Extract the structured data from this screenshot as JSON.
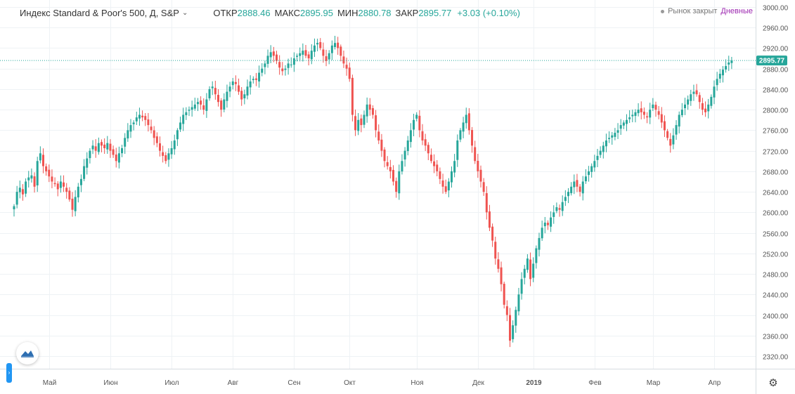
{
  "header": {
    "symbol": "Индекс Standard & Poor's 500, Д, S&P",
    "chevron": "⌄",
    "open_label": "ОТКР",
    "open": "2888.46",
    "high_label": "МАКС",
    "high": "2895.95",
    "low_label": "МИН",
    "low": "2880.78",
    "close_label": "ЗАКР",
    "close": "2895.77",
    "change": "+3.03 (+0.10%)"
  },
  "status": {
    "market": "Рынок закрыт",
    "interval": "Дневные"
  },
  "colors": {
    "up": "#26a69a",
    "down": "#ef5350",
    "grid": "#eef2f5",
    "price_line": "#26a69a",
    "axis_text": "#555555"
  },
  "chart_data": {
    "type": "candlestick",
    "ylim": [
      2300,
      3000
    ],
    "yticks": [
      2320,
      2360,
      2400,
      2440,
      2480,
      2520,
      2560,
      2600,
      2640,
      2680,
      2720,
      2760,
      2800,
      2840,
      2880,
      2920,
      2960,
      3000
    ],
    "ytick_labels": [
      "2320.00",
      "2360.00",
      "2400.00",
      "2440.00",
      "2480.00",
      "2520.00",
      "2560.00",
      "2600.00",
      "2640.00",
      "2680.00",
      "2720.00",
      "2760.00",
      "2800.00",
      "2840.00",
      "2880.00",
      "2920.00",
      "2960.00",
      "3000.00"
    ],
    "x_ticks": [
      {
        "label": "Май",
        "bar": 12
      },
      {
        "label": "Июн",
        "bar": 33
      },
      {
        "label": "Июл",
        "bar": 54
      },
      {
        "label": "Авг",
        "bar": 75
      },
      {
        "label": "Сен",
        "bar": 96
      },
      {
        "label": "Окт",
        "bar": 115
      },
      {
        "label": "Ноя",
        "bar": 138
      },
      {
        "label": "Дек",
        "bar": 159
      },
      {
        "label": "2019",
        "bar": 178,
        "bold": true
      },
      {
        "label": "Фев",
        "bar": 199
      },
      {
        "label": "Мар",
        "bar": 219
      },
      {
        "label": "Апр",
        "bar": 240
      }
    ],
    "last_price": 2895.77,
    "last_price_label": "2895.77",
    "closes": [
      2612,
      2640,
      2648,
      2635,
      2660,
      2668,
      2672,
      2650,
      2700,
      2715,
      2690,
      2680,
      2670,
      2660,
      2655,
      2645,
      2660,
      2650,
      2640,
      2625,
      2605,
      2630,
      2650,
      2665,
      2690,
      2705,
      2720,
      2730,
      2720,
      2735,
      2730,
      2725,
      2735,
      2720,
      2712,
      2700,
      2715,
      2725,
      2745,
      2760,
      2770,
      2775,
      2785,
      2790,
      2785,
      2780,
      2770,
      2760,
      2745,
      2735,
      2720,
      2710,
      2700,
      2715,
      2725,
      2740,
      2760,
      2775,
      2790,
      2795,
      2800,
      2805,
      2810,
      2815,
      2810,
      2800,
      2820,
      2840,
      2845,
      2830,
      2815,
      2800,
      2820,
      2835,
      2845,
      2855,
      2850,
      2835,
      2820,
      2830,
      2845,
      2855,
      2860,
      2858,
      2872,
      2880,
      2890,
      2905,
      2912,
      2905,
      2895,
      2882,
      2875,
      2880,
      2890,
      2888,
      2900,
      2905,
      2910,
      2915,
      2905,
      2900,
      2915,
      2925,
      2930,
      2920,
      2905,
      2895,
      2910,
      2925,
      2930,
      2920,
      2905,
      2890,
      2880,
      2860,
      2790,
      2760,
      2780,
      2770,
      2790,
      2810,
      2800,
      2790,
      2760,
      2740,
      2720,
      2700,
      2690,
      2680,
      2660,
      2640,
      2680,
      2700,
      2720,
      2740,
      2760,
      2780,
      2790,
      2760,
      2740,
      2730,
      2715,
      2700,
      2690,
      2680,
      2665,
      2650,
      2640,
      2660,
      2680,
      2700,
      2740,
      2760,
      2775,
      2790,
      2760,
      2730,
      2700,
      2680,
      2660,
      2640,
      2600,
      2570,
      2545,
      2510,
      2490,
      2460,
      2420,
      2400,
      2350,
      2380,
      2410,
      2440,
      2470,
      2490,
      2510,
      2470,
      2500,
      2530,
      2550,
      2570,
      2580,
      2575,
      2590,
      2600,
      2610,
      2605,
      2620,
      2630,
      2640,
      2650,
      2660,
      2650,
      2640,
      2660,
      2670,
      2680,
      2690,
      2700,
      2710,
      2720,
      2730,
      2740,
      2745,
      2750,
      2755,
      2760,
      2770,
      2775,
      2780,
      2785,
      2790,
      2795,
      2800,
      2795,
      2790,
      2785,
      2800,
      2810,
      2800,
      2790,
      2775,
      2760,
      2745,
      2730,
      2750,
      2770,
      2790,
      2800,
      2810,
      2820,
      2830,
      2835,
      2830,
      2815,
      2800,
      2795,
      2810,
      2825,
      2845,
      2860,
      2870,
      2878,
      2885,
      2892,
      2895.77
    ]
  }
}
